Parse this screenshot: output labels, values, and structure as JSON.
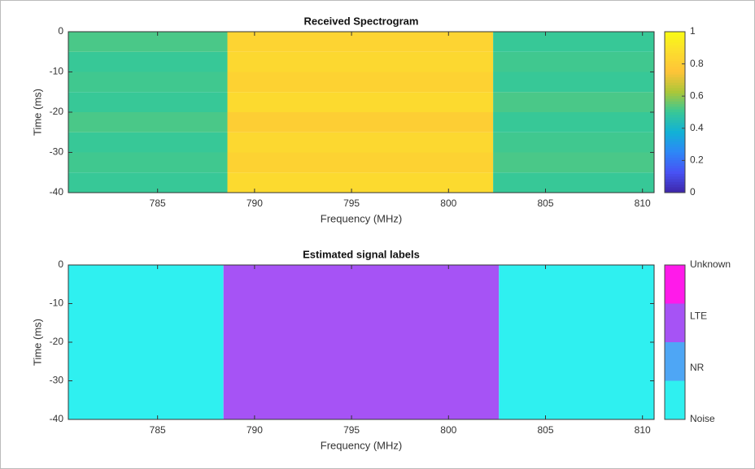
{
  "chart_data": [
    {
      "type": "heatmap",
      "title": "Received Spectrogram",
      "xlabel": "Frequency (MHz)",
      "ylabel": "Time (ms)",
      "xlim": [
        780.4,
        810.6
      ],
      "ylim": [
        -40,
        0
      ],
      "xticks": [
        785,
        790,
        795,
        800,
        805,
        810
      ],
      "yticks": [
        -40,
        -30,
        -20,
        -10,
        0
      ],
      "x_edges": [
        780.4,
        788.6,
        802.3,
        810.6
      ],
      "y_edges": [
        -40,
        -35,
        -30,
        -25,
        -20,
        -15,
        -10,
        -5,
        0
      ],
      "values": [
        [
          0.5,
          0.86,
          0.5
        ],
        [
          0.51,
          0.82,
          0.52
        ],
        [
          0.5,
          0.85,
          0.51
        ],
        [
          0.52,
          0.8,
          0.5
        ],
        [
          0.5,
          0.86,
          0.52
        ],
        [
          0.51,
          0.82,
          0.5
        ],
        [
          0.5,
          0.85,
          0.51
        ],
        [
          0.52,
          0.83,
          0.5
        ]
      ],
      "colormap": "parula",
      "clim": [
        0,
        1
      ],
      "cticks": [
        0,
        0.2,
        0.4,
        0.6,
        0.8,
        1
      ]
    },
    {
      "type": "label-map",
      "title": "Estimated signal labels",
      "xlabel": "Frequency (MHz)",
      "ylabel": "Time (ms)",
      "xlim": [
        780.4,
        810.6
      ],
      "ylim": [
        -40,
        0
      ],
      "xticks": [
        785,
        790,
        795,
        800,
        805,
        810
      ],
      "yticks": [
        -40,
        -30,
        -20,
        -10,
        0
      ],
      "classes": [
        {
          "name": "Noise",
          "color": "#2ff0f0"
        },
        {
          "name": "NR",
          "color": "#4ea6f5"
        },
        {
          "name": "LTE",
          "color": "#a653f5"
        },
        {
          "name": "Unknown",
          "color": "#ff1aea"
        }
      ],
      "regions": [
        {
          "x": [
            780.4,
            788.4
          ],
          "class": 0
        },
        {
          "x": [
            788.4,
            802.6
          ],
          "class": 2
        },
        {
          "x": [
            802.6,
            810.6
          ],
          "class": 0
        }
      ]
    }
  ]
}
